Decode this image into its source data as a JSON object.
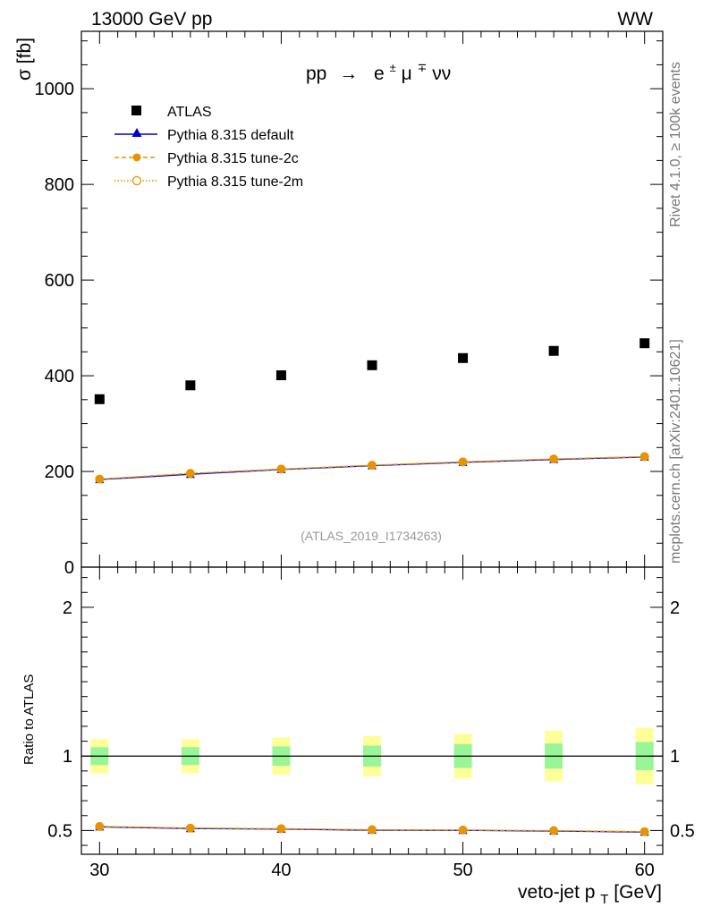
{
  "header": {
    "left": "13000 GeV pp",
    "right": "WW"
  },
  "process_label": {
    "base": "pp",
    "arrow": "→",
    "e": "e",
    "e_sup": "±",
    "mu": "μ",
    "mu_sup": "∓",
    "nunu": "νν"
  },
  "side_labels": {
    "top": "Rivet 4.1.0, ≥ 100k events",
    "bottom": "mcplots.cern.ch [arXiv:2401.10621]"
  },
  "analysis_id": "(ATLAS_2019_I1734263)",
  "colors": {
    "data": "#000000",
    "default": "#0000cc",
    "tune2c": "#e69500",
    "tune2m": "#e69500",
    "band_inner": "#98f598",
    "band_outer": "#ffff98"
  },
  "chart_data": [
    {
      "type": "scatter",
      "panel": "main",
      "ylabel": "σ [fb]",
      "xlim": [
        29,
        61
      ],
      "ylim": [
        0,
        1120
      ],
      "yticks": [
        0,
        200,
        400,
        600,
        800,
        1000
      ],
      "ytick_labels": [
        "0",
        "200",
        "400",
        "600",
        "800",
        "1000"
      ],
      "x": [
        30,
        35,
        40,
        45,
        50,
        55,
        60
      ],
      "series": [
        {
          "name": "ATLAS",
          "values": [
            351,
            380,
            401,
            422,
            437,
            452,
            468
          ]
        },
        {
          "name": "Pythia 8.315 default",
          "values": [
            183,
            194,
            204,
            212,
            219,
            225,
            230
          ]
        },
        {
          "name": "Pythia 8.315 tune-2c",
          "values": [
            184,
            196,
            205,
            213,
            220,
            226,
            231
          ]
        },
        {
          "name": "Pythia 8.315 tune-2m",
          "values": [
            184,
            196,
            205,
            213,
            220,
            226,
            231
          ]
        }
      ],
      "legend_position": "top-left"
    },
    {
      "type": "scatter",
      "panel": "ratio",
      "ylabel": "Ratio to ATLAS",
      "xlabel": "veto-jet p",
      "xlabel_sub": "T",
      "xlabel_unit": " [GeV]",
      "xlim": [
        29,
        61
      ],
      "ylim": [
        0.34,
        2.27
      ],
      "yticks": [
        0.5,
        1,
        2
      ],
      "ytick_labels": [
        "0.5",
        "1",
        "2"
      ],
      "xticks": [
        30,
        40,
        50,
        60
      ],
      "xtick_labels": [
        "30",
        "40",
        "50",
        "60"
      ],
      "x": [
        30,
        35,
        40,
        45,
        50,
        55,
        60
      ],
      "inner_band": [
        [
          0.94,
          1.06
        ],
        [
          0.94,
          1.06
        ],
        [
          0.935,
          1.065
        ],
        [
          0.93,
          1.07
        ],
        [
          0.92,
          1.08
        ],
        [
          0.915,
          1.085
        ],
        [
          0.905,
          1.095
        ]
      ],
      "outer_band": [
        [
          0.885,
          1.115
        ],
        [
          0.885,
          1.115
        ],
        [
          0.875,
          1.125
        ],
        [
          0.865,
          1.135
        ],
        [
          0.85,
          1.15
        ],
        [
          0.83,
          1.17
        ],
        [
          0.81,
          1.19
        ]
      ],
      "series": [
        {
          "name": "Pythia 8.315 default",
          "values": [
            0.524,
            0.513,
            0.509,
            0.502,
            0.501,
            0.496,
            0.489
          ]
        },
        {
          "name": "Pythia 8.315 tune-2c",
          "values": [
            0.527,
            0.516,
            0.512,
            0.505,
            0.503,
            0.499,
            0.492
          ]
        },
        {
          "name": "Pythia 8.315 tune-2m",
          "values": [
            0.527,
            0.516,
            0.512,
            0.505,
            0.503,
            0.499,
            0.492
          ]
        }
      ]
    }
  ]
}
